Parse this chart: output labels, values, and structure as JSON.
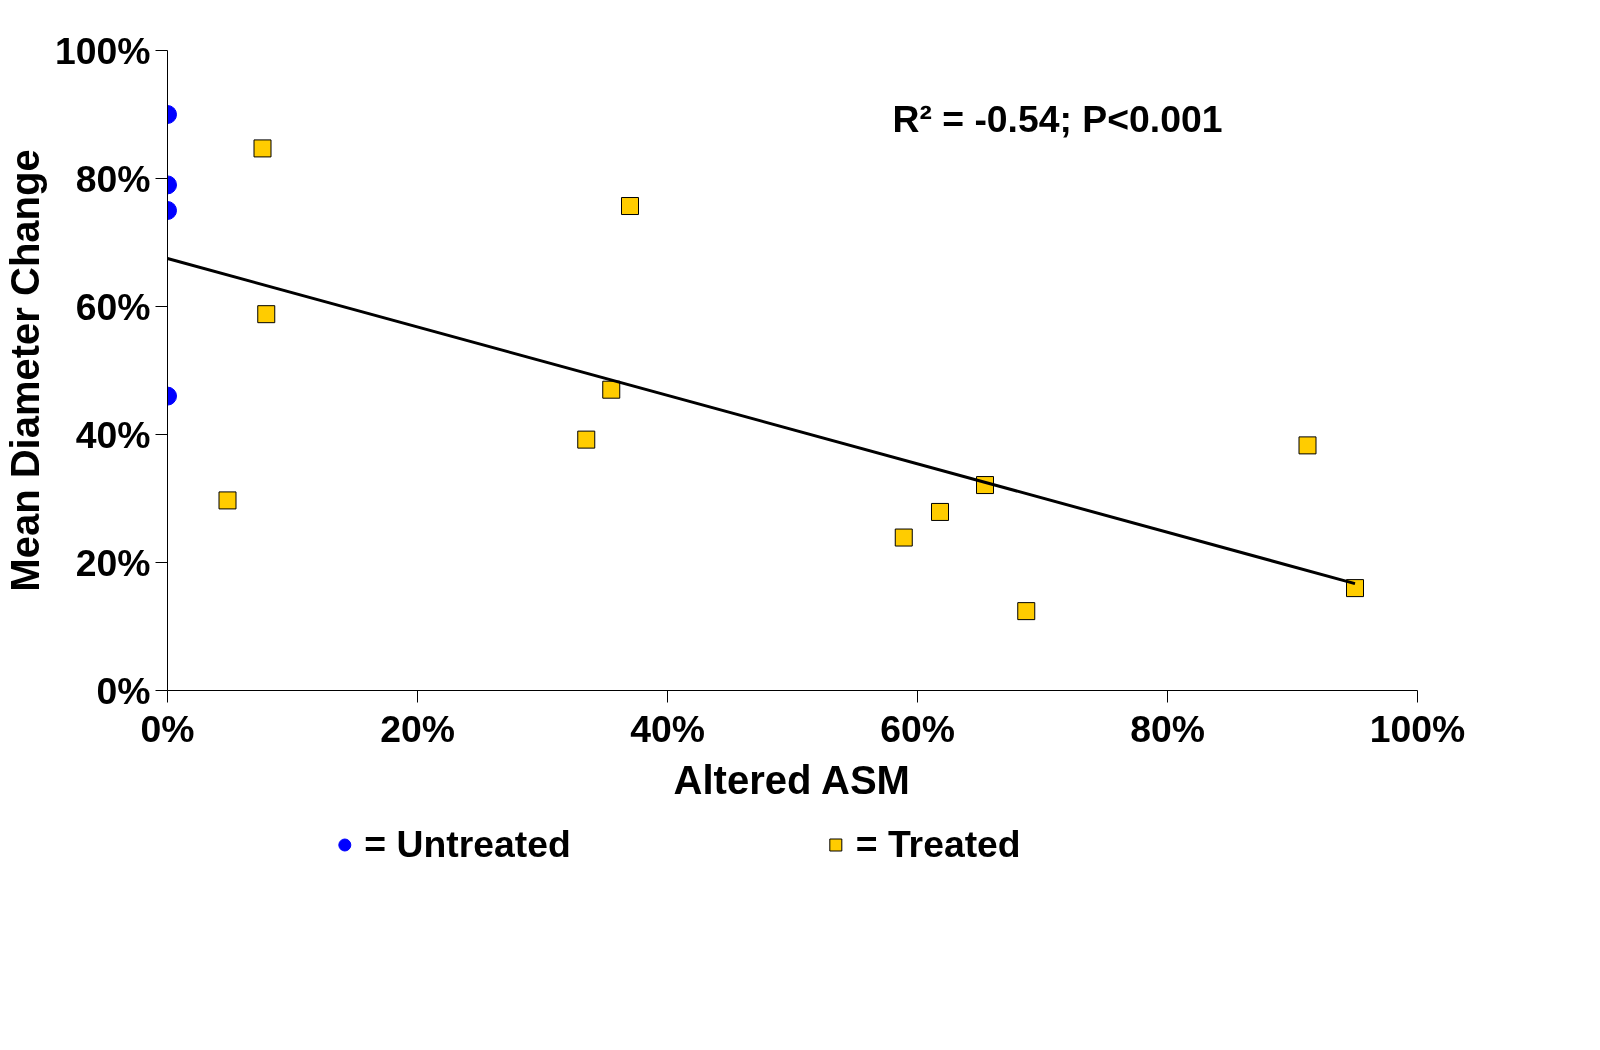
{
  "chart_data": {
    "type": "scatter",
    "xlabel": "Altered ASM",
    "ylabel": "Mean Diameter Change",
    "annotations": [
      "R² = -0.54;    P<0.001"
    ],
    "xlim": [
      0,
      100
    ],
    "ylim": [
      0,
      100
    ],
    "xticks": [
      {
        "value": 0,
        "label": "0%"
      },
      {
        "value": 20,
        "label": "20%"
      },
      {
        "value": 40,
        "label": "40%"
      },
      {
        "value": 60,
        "label": "60%"
      },
      {
        "value": 80,
        "label": "80%"
      },
      {
        "value": 100,
        "label": "100%"
      }
    ],
    "yticks": [
      {
        "value": 0,
        "label": "0%"
      },
      {
        "value": 20,
        "label": "20%"
      },
      {
        "value": 40,
        "label": "40%"
      },
      {
        "value": 60,
        "label": "60%"
      },
      {
        "value": 80,
        "label": "80%"
      },
      {
        "value": 100,
        "label": "100%"
      }
    ],
    "grid": false,
    "legend": "bottom",
    "series": [
      {
        "name": "= Untreated",
        "color": "#0000ff",
        "marker": "circle",
        "x": [
          0,
          0,
          0,
          0
        ],
        "values": [
          90,
          79,
          75,
          46
        ]
      },
      {
        "name": "= Treated",
        "color": "#ffcc00",
        "marker": "square",
        "x": [
          7.6,
          7.9,
          4.8,
          37,
          35.5,
          33.5,
          58.9,
          61.8,
          65.4,
          68.7,
          91.2,
          95
        ],
        "values": [
          84.7,
          58.8,
          29.7,
          75.7,
          47,
          39.2,
          23.9,
          27.9,
          32.1,
          12.4,
          38.3,
          16
        ]
      },
      {
        "type": "line",
        "color": "#000000",
        "marker": "none",
        "line_style": "solid",
        "x": [
          0,
          95
        ],
        "values": [
          67.5,
          16.7
        ]
      }
    ]
  }
}
